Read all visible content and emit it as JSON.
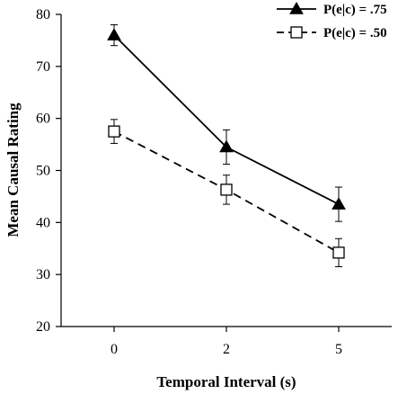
{
  "chart_data": {
    "type": "line",
    "categories": [
      "0",
      "2",
      "5"
    ],
    "xlabel": "Temporal Interval (s)",
    "ylabel": "Mean Causal Rating",
    "ylim": [
      20,
      80
    ],
    "yticks": [
      "20",
      "30",
      "40",
      "50",
      "60",
      "70",
      "80"
    ],
    "grid": false,
    "legend_position": "top-right",
    "series": [
      {
        "name": "P(e|c) = .75",
        "marker": "filled-triangle",
        "line": "solid",
        "color": "#000000",
        "values": [
          76,
          54.5,
          43.5
        ],
        "error": [
          2,
          3.3,
          3.3
        ]
      },
      {
        "name": "P(e|c) = .50",
        "marker": "open-square",
        "line": "dashed",
        "color": "#000000",
        "values": [
          57.5,
          46.3,
          34.2
        ],
        "error": [
          2.3,
          2.8,
          2.7
        ]
      }
    ]
  }
}
